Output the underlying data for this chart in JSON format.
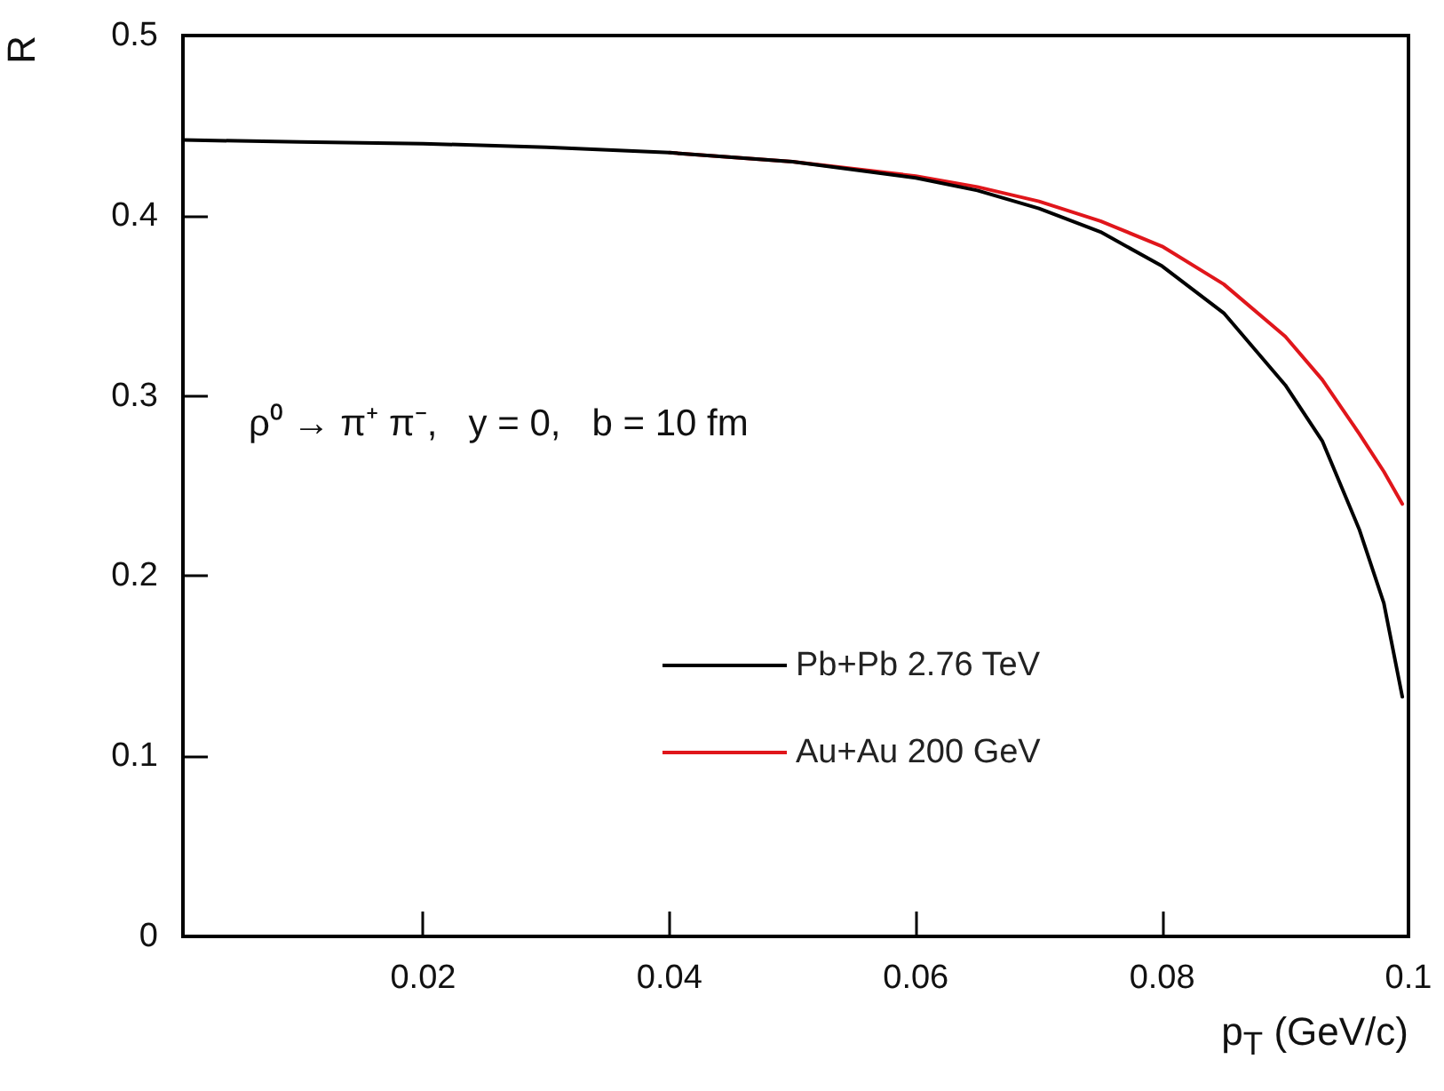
{
  "chart_data": {
    "type": "line",
    "xlabel": "p$_{T}$ (GeV/c)",
    "ylabel": "R",
    "annotations": [
      "ρ⁰ → π⁺ π⁻,   y = 0,   b = 10 fm"
    ],
    "xlim": [
      0.0005,
      0.1
    ],
    "xticks": [
      0.02,
      0.04,
      0.06,
      0.08,
      0.1
    ],
    "ylim": [
      0,
      0.5
    ],
    "yticks": [
      0,
      0.1,
      0.2,
      0.3,
      0.4,
      0.5
    ],
    "grid": false,
    "legend": "bottom right",
    "marker": "none",
    "line_style": "solid",
    "x": [
      0.0005,
      0.01,
      0.02,
      0.03,
      0.04,
      0.05,
      0.06,
      0.065,
      0.07,
      0.075,
      0.08,
      0.085,
      0.09,
      0.093,
      0.096,
      0.098,
      0.0995
    ],
    "series": [
      {
        "name": "Pb+Pb 2.76 TeV",
        "color": "#000000",
        "values": [
          0.442,
          0.441,
          0.44,
          0.438,
          0.435,
          0.43,
          0.421,
          0.414,
          0.404,
          0.391,
          0.372,
          0.346,
          0.306,
          0.275,
          0.226,
          0.185,
          0.133
        ]
      },
      {
        "name": "Au+Au 200 GeV",
        "color": "#e0161b",
        "values": [
          null,
          null,
          null,
          null,
          0.435,
          0.43,
          0.422,
          0.416,
          0.408,
          0.397,
          0.383,
          0.362,
          0.333,
          0.309,
          0.279,
          0.258,
          0.24
        ]
      }
    ]
  }
}
